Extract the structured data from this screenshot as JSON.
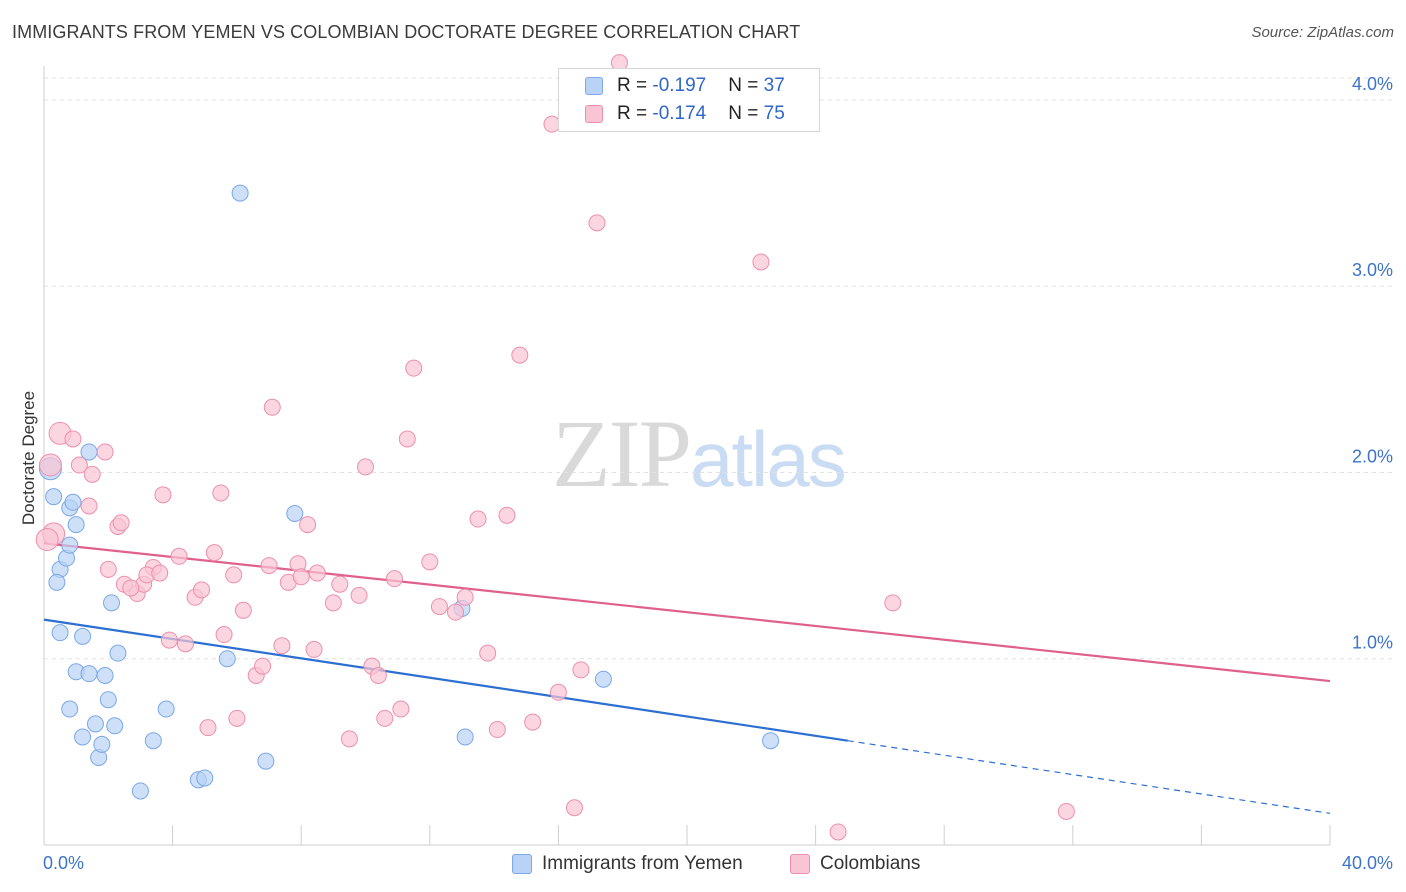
{
  "title": "IMMIGRANTS FROM YEMEN VS COLOMBIAN DOCTORATE DEGREE CORRELATION CHART",
  "source": "Source: ZipAtlas.com",
  "watermark": {
    "zip": "ZIP",
    "atlas": "atlas"
  },
  "legend": {
    "rows": [
      {
        "r_label": "R = ",
        "r_value": "-0.197",
        "n_label": "N = ",
        "n_value": "37"
      },
      {
        "r_label": "R = ",
        "r_value": "-0.174",
        "n_label": "N = ",
        "n_value": "75"
      }
    ]
  },
  "colors": {
    "blue_fill": "#b8d3f5",
    "blue_stroke": "#7aa8e8",
    "blue_line": "#2d6fd1",
    "pink_fill": "#f9c4d4",
    "pink_stroke": "#ec8fad",
    "pink_line": "#e0608c",
    "tick_label": "#3d74c9",
    "grid": "#e2e2e2"
  },
  "chart_data": {
    "type": "scatter",
    "title": "IMMIGRANTS FROM YEMEN VS COLOMBIAN DOCTORATE DEGREE CORRELATION CHART",
    "ylabel": "Doctorate Degree",
    "xlabel": "",
    "xlim": [
      0,
      40
    ],
    "ylim": [
      0,
      4.15
    ],
    "x_tick_labels": [
      "0.0%",
      "40.0%"
    ],
    "y_ticks": [
      1,
      2,
      3,
      4
    ],
    "y_tick_labels": [
      "1.0%",
      "2.0%",
      "3.0%",
      "4.0%"
    ],
    "grid": true,
    "legend_position": "top-center",
    "series": [
      {
        "name": "Immigrants from Yemen",
        "color": "#b8d3f5",
        "points": [
          [
            0.2,
            2.02
          ],
          [
            0.3,
            1.87
          ],
          [
            0.5,
            1.48
          ],
          [
            0.4,
            1.41
          ],
          [
            0.5,
            1.14
          ],
          [
            0.8,
            1.81
          ],
          [
            0.9,
            1.84
          ],
          [
            1.0,
            1.72
          ],
          [
            0.7,
            1.54
          ],
          [
            0.8,
            1.61
          ],
          [
            1.4,
            2.11
          ],
          [
            1.2,
            1.12
          ],
          [
            1.0,
            0.93
          ],
          [
            1.4,
            0.92
          ],
          [
            1.9,
            0.91
          ],
          [
            0.8,
            0.73
          ],
          [
            1.2,
            0.58
          ],
          [
            1.6,
            0.65
          ],
          [
            1.7,
            0.47
          ],
          [
            1.8,
            0.54
          ],
          [
            2.0,
            0.78
          ],
          [
            2.2,
            0.64
          ],
          [
            2.1,
            1.3
          ],
          [
            2.3,
            1.03
          ],
          [
            3.4,
            0.56
          ],
          [
            3.8,
            0.73
          ],
          [
            3.0,
            0.29
          ],
          [
            4.8,
            0.35
          ],
          [
            5.0,
            0.36
          ],
          [
            5.7,
            1.0
          ],
          [
            6.1,
            3.5
          ],
          [
            6.9,
            0.45
          ],
          [
            7.8,
            1.78
          ],
          [
            13.0,
            1.27
          ],
          [
            13.1,
            0.58
          ],
          [
            17.4,
            0.89
          ],
          [
            22.6,
            0.56
          ]
        ]
      },
      {
        "name": "Colombians",
        "color": "#f9c4d4",
        "points": [
          [
            0.2,
            2.04
          ],
          [
            0.5,
            2.21
          ],
          [
            0.3,
            1.67
          ],
          [
            0.9,
            2.18
          ],
          [
            1.4,
            1.82
          ],
          [
            1.5,
            1.99
          ],
          [
            1.1,
            2.04
          ],
          [
            1.9,
            2.11
          ],
          [
            2.3,
            1.71
          ],
          [
            2.0,
            1.48
          ],
          [
            2.4,
            1.73
          ],
          [
            2.5,
            1.4
          ],
          [
            2.9,
            1.35
          ],
          [
            3.1,
            1.4
          ],
          [
            3.4,
            1.49
          ],
          [
            3.2,
            1.45
          ],
          [
            3.6,
            1.46
          ],
          [
            3.7,
            1.88
          ],
          [
            3.9,
            1.1
          ],
          [
            4.2,
            1.55
          ],
          [
            4.4,
            1.08
          ],
          [
            4.7,
            1.33
          ],
          [
            4.9,
            1.37
          ],
          [
            5.1,
            0.63
          ],
          [
            5.3,
            1.57
          ],
          [
            5.5,
            1.89
          ],
          [
            5.6,
            1.13
          ],
          [
            5.9,
            1.45
          ],
          [
            6.0,
            0.68
          ],
          [
            6.2,
            1.26
          ],
          [
            6.6,
            0.91
          ],
          [
            6.8,
            0.96
          ],
          [
            7.0,
            1.5
          ],
          [
            7.1,
            2.35
          ],
          [
            7.4,
            1.07
          ],
          [
            7.6,
            1.41
          ],
          [
            7.9,
            1.51
          ],
          [
            8.0,
            1.44
          ],
          [
            8.2,
            1.72
          ],
          [
            8.5,
            1.46
          ],
          [
            8.4,
            1.05
          ],
          [
            9.0,
            1.3
          ],
          [
            9.2,
            1.4
          ],
          [
            9.5,
            0.57
          ],
          [
            9.8,
            1.34
          ],
          [
            10.0,
            2.03
          ],
          [
            10.2,
            0.96
          ],
          [
            10.4,
            0.91
          ],
          [
            10.6,
            0.68
          ],
          [
            10.9,
            1.43
          ],
          [
            11.1,
            0.73
          ],
          [
            11.3,
            2.18
          ],
          [
            11.5,
            2.56
          ],
          [
            12.0,
            1.52
          ],
          [
            12.3,
            1.28
          ],
          [
            12.8,
            1.25
          ],
          [
            13.1,
            1.33
          ],
          [
            13.5,
            1.75
          ],
          [
            13.8,
            1.03
          ],
          [
            14.1,
            0.62
          ],
          [
            14.4,
            1.77
          ],
          [
            14.8,
            2.63
          ],
          [
            15.2,
            0.66
          ],
          [
            15.8,
            3.87
          ],
          [
            16.0,
            0.82
          ],
          [
            16.5,
            0.2
          ],
          [
            16.7,
            0.94
          ],
          [
            17.2,
            3.34
          ],
          [
            17.9,
            4.2
          ],
          [
            22.3,
            3.13
          ],
          [
            24.7,
            0.07
          ],
          [
            26.4,
            1.3
          ],
          [
            31.8,
            0.18
          ],
          [
            0.1,
            1.64
          ],
          [
            2.7,
            1.38
          ]
        ]
      }
    ],
    "trendlines": [
      {
        "series": "Immigrants from Yemen",
        "solid": [
          [
            0,
            1.21
          ],
          [
            25,
            0.56
          ]
        ],
        "dashed": [
          [
            25,
            0.56
          ],
          [
            40,
            0.17
          ]
        ]
      },
      {
        "series": "Colombians",
        "solid": [
          [
            0,
            1.62
          ],
          [
            40,
            0.88
          ]
        ]
      }
    ]
  },
  "bottom_legend": [
    "Immigrants from Yemen",
    "Colombians"
  ]
}
